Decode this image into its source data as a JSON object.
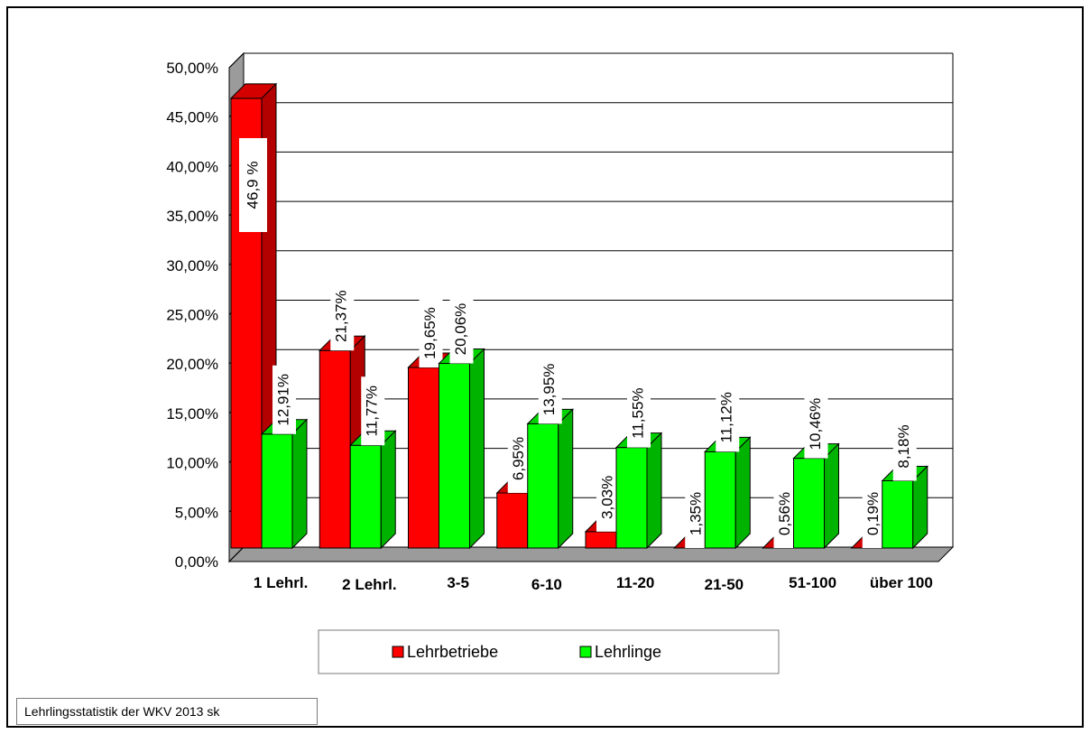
{
  "chart_data": {
    "type": "bar",
    "categories": [
      "1 Lehrl.",
      "2 Lehrl.",
      "3-5",
      "6-10",
      "11-20",
      "21-50",
      "51-100",
      "über 100"
    ],
    "series": [
      {
        "name": "Lehrbetriebe",
        "values": [
          46.9,
          21.37,
          19.65,
          6.95,
          3.03,
          1.35,
          0.56,
          0.19
        ],
        "labels": [
          "46,9 %",
          "21,37%",
          "19,65%",
          "6,95%",
          "3,03%",
          "1,35%",
          "0,56%",
          "0,19%"
        ],
        "color": "#ff0000",
        "side_color": "#b30000",
        "top_color": "#d40000"
      },
      {
        "name": "Lehrlinge",
        "values": [
          12.91,
          11.77,
          20.06,
          13.95,
          11.55,
          11.12,
          10.46,
          8.18
        ],
        "labels": [
          "12,91%",
          "11,77%",
          "20,06%",
          "13,95%",
          "11,55%",
          "11,12%",
          "10,46%",
          "8,18%"
        ],
        "color": "#00ff00",
        "side_color": "#00b300",
        "top_color": "#00d400"
      }
    ],
    "ylim": [
      0,
      50
    ],
    "y_ticks": [
      "0,00%",
      "5,00%",
      "10,00%",
      "15,00%",
      "20,00%",
      "25,00%",
      "30,00%",
      "35,00%",
      "40,00%",
      "45,00%",
      "50,00%"
    ],
    "grid": true,
    "legend_position": "bottom",
    "three_d": true
  },
  "footer": {
    "source": "Lehrlingsstatistik der WKV 2013  sk"
  }
}
